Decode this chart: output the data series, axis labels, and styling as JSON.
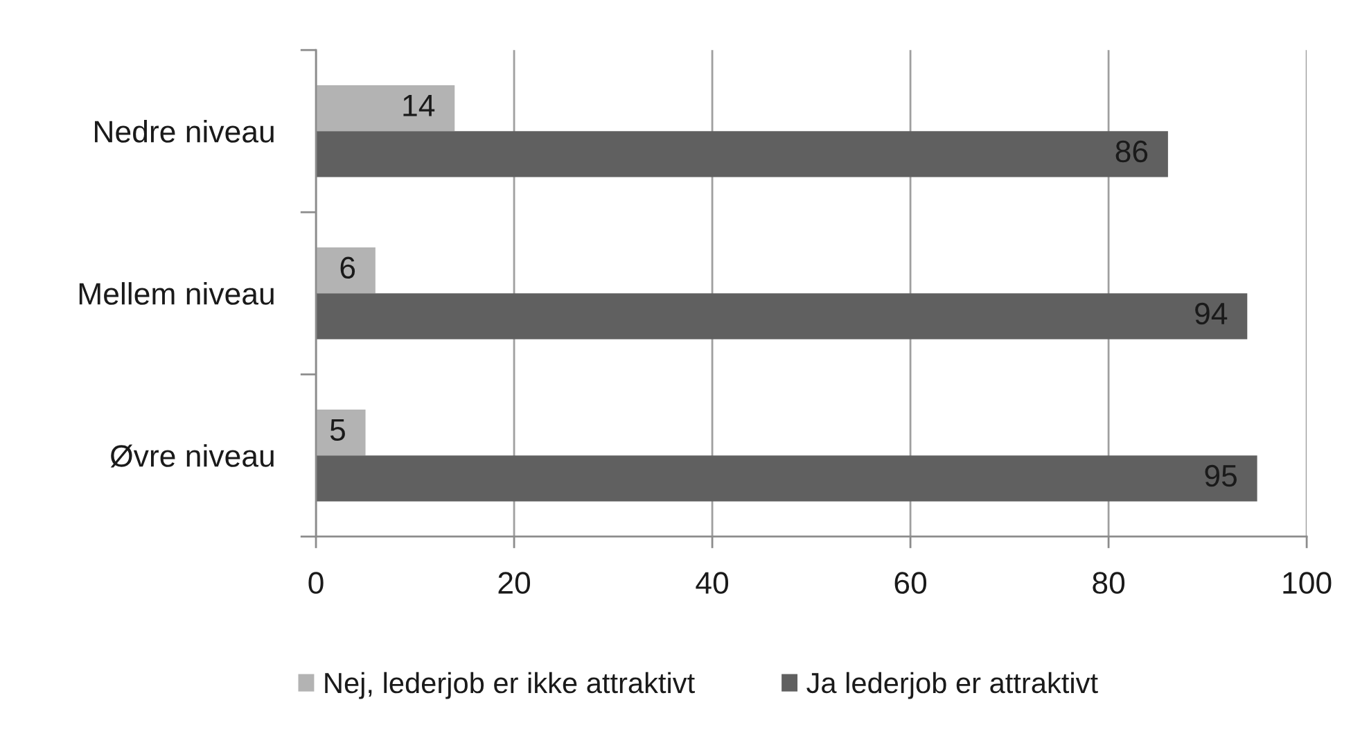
{
  "chart_data": {
    "type": "bar",
    "orientation": "horizontal",
    "categories": [
      "Nedre niveau",
      "Mellem niveau",
      "Øvre niveau"
    ],
    "series": [
      {
        "name": "Nej, lederjob er ikke attraktivt",
        "color": "#b3b3b3",
        "values": [
          14,
          6,
          5
        ]
      },
      {
        "name": "Ja lederjob er attraktivt",
        "color": "#606060",
        "values": [
          86,
          94,
          95
        ]
      }
    ],
    "xlim": [
      0,
      100
    ],
    "xticks": [
      0,
      20,
      40,
      60,
      80,
      100
    ],
    "grid": "x",
    "legend": "bottom",
    "data_labels": true
  }
}
